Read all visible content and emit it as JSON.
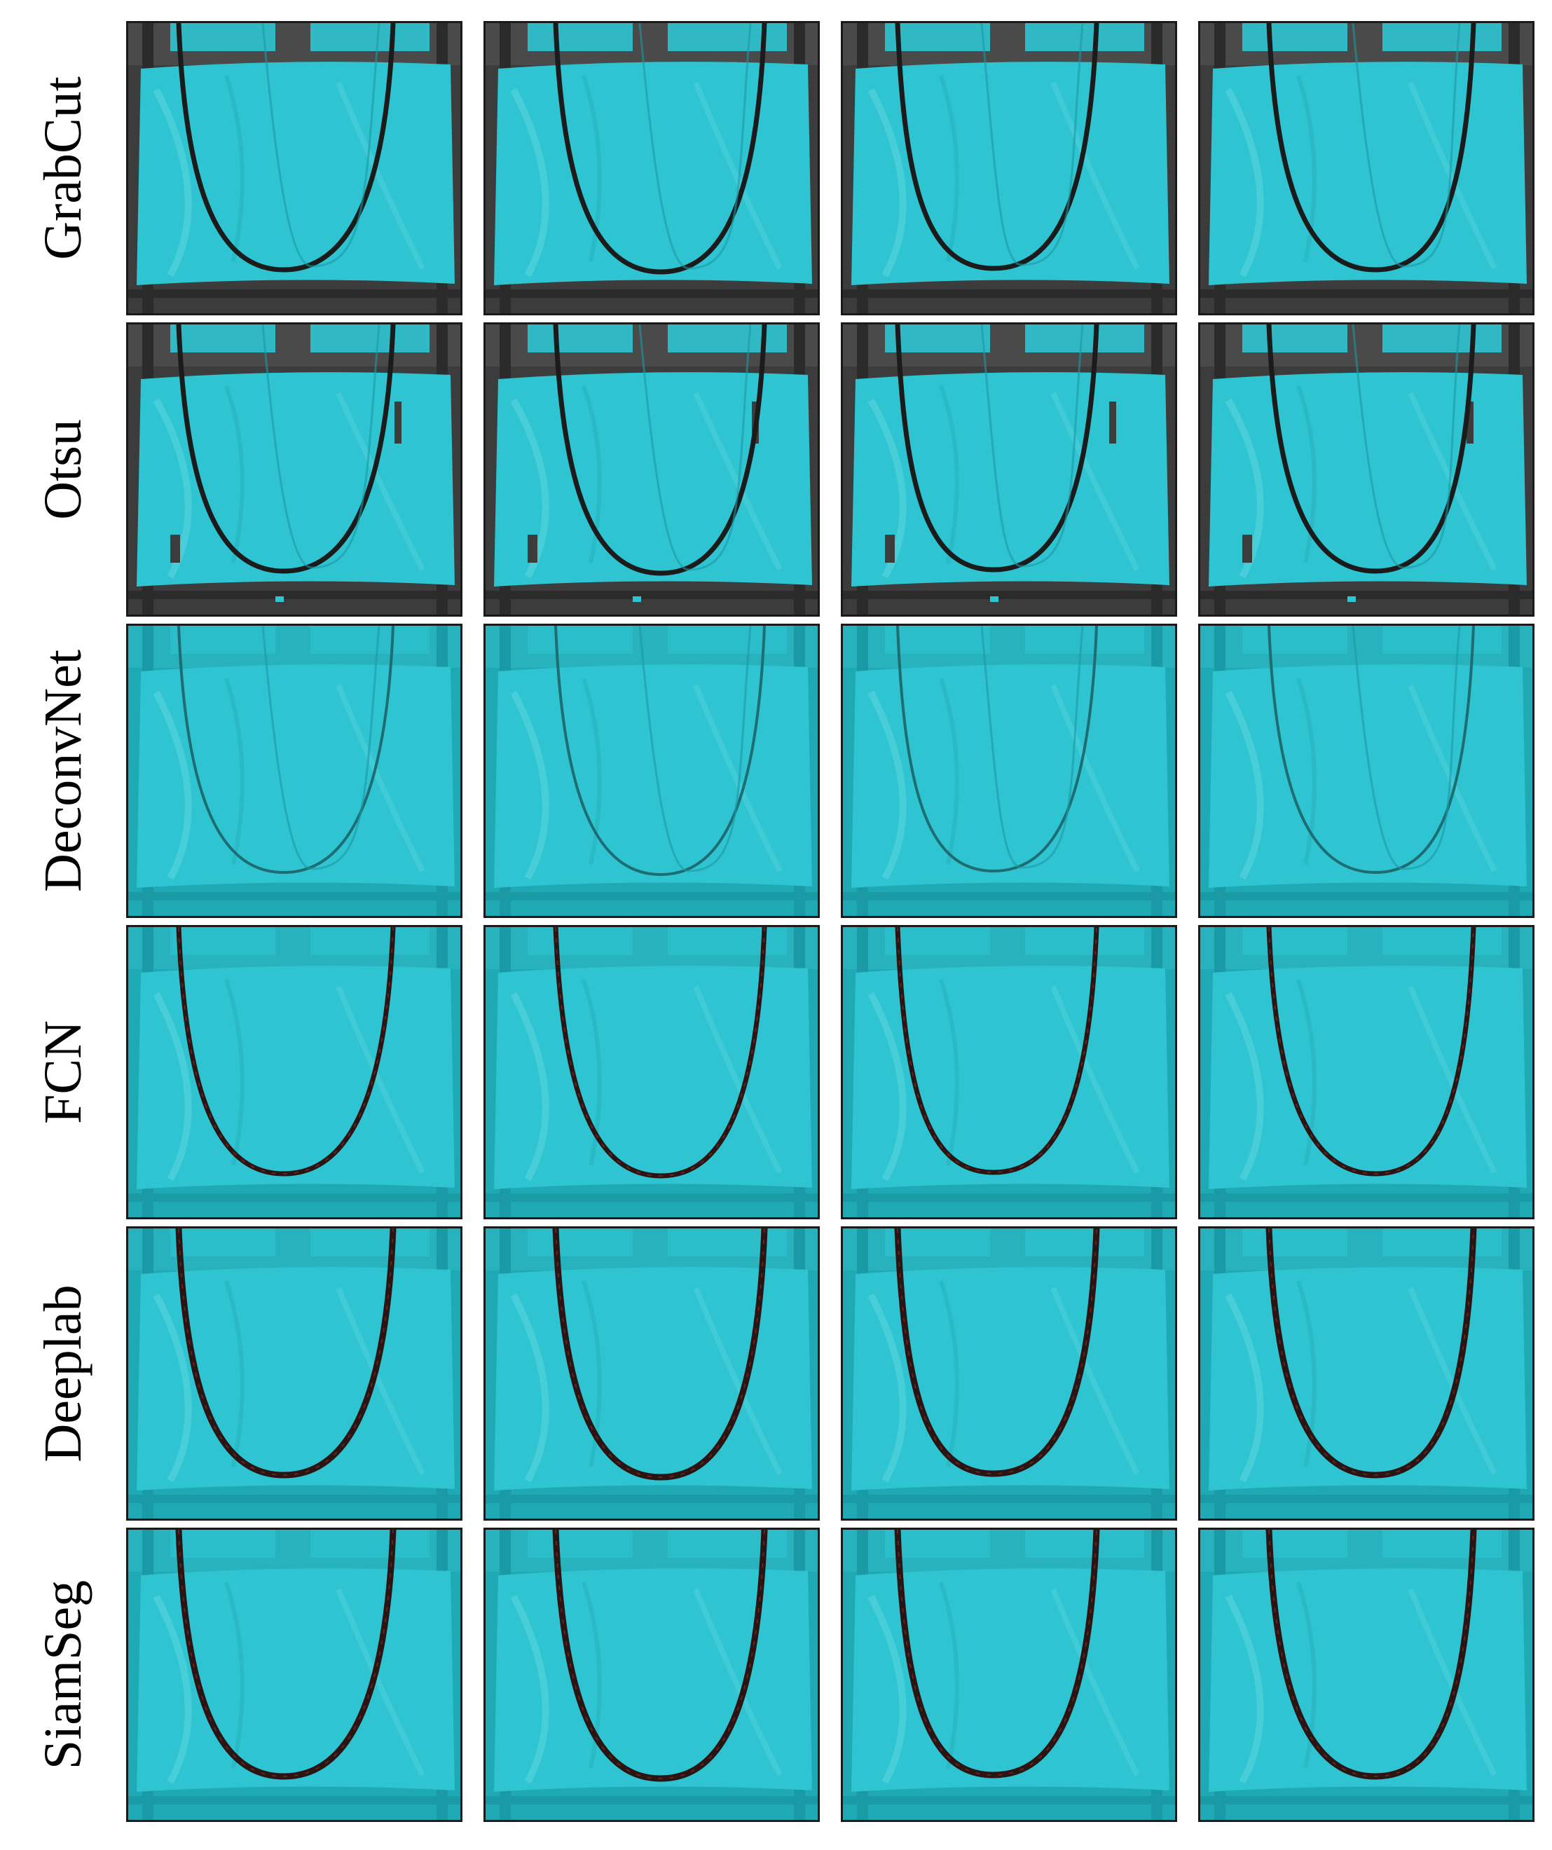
{
  "figure": {
    "row_labels": [
      "GrabCut",
      "Otsu",
      "DeconvNet",
      "FCN",
      "Deeplab",
      "SiamSeg"
    ],
    "columns": 4,
    "colors": {
      "overlay": "#2ec4d1",
      "overlay_dark": "#1fa9b4",
      "frame": "#3c3c3c",
      "rope": "#2a1414",
      "rope_highlight": "#7a2d24",
      "background": "#ffffff"
    }
  }
}
